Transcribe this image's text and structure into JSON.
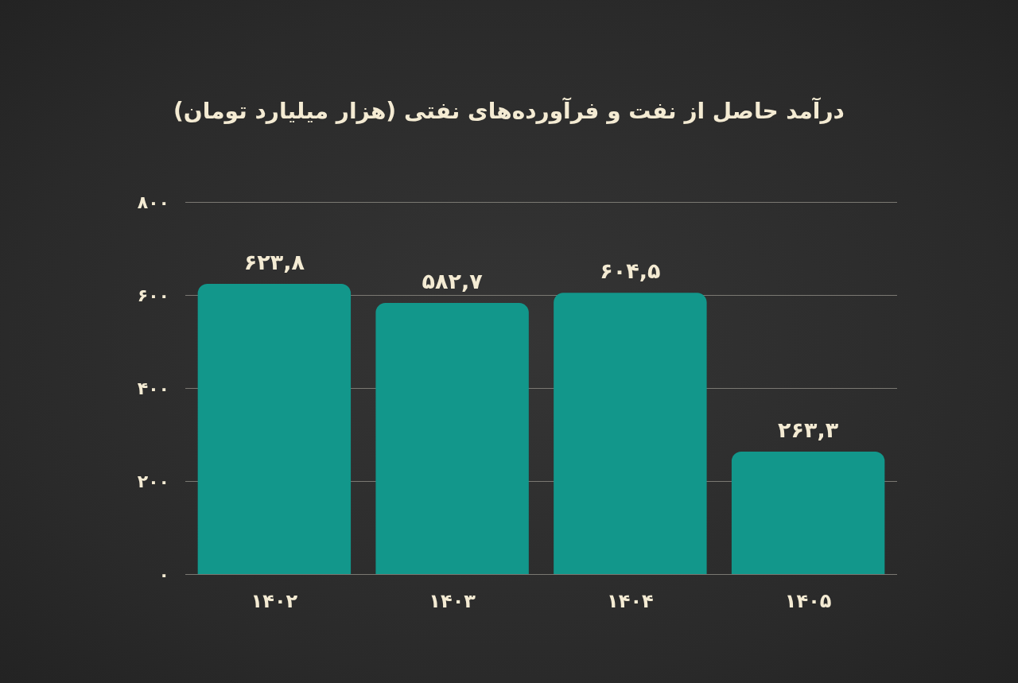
{
  "chart_data": {
    "type": "bar",
    "title": "درآمد حاصل از نفت و فرآورده‌های نفتی (هزار میلیارد تومان)",
    "categories": [
      "۱۴۰۲",
      "۱۴۰۳",
      "۱۴۰۴",
      "۱۴۰۵"
    ],
    "values": [
      623.8,
      582.7,
      604.5,
      263.3
    ],
    "value_labels": [
      "۶۲۳,۸",
      "۵۸۲,۷",
      "۶۰۴,۵",
      "۲۶۳,۳"
    ],
    "color": "#12978b",
    "ylim": [
      0,
      800
    ],
    "yticks": [
      {
        "value": 0,
        "label": "۰"
      },
      {
        "value": 200,
        "label": "۲۰۰"
      },
      {
        "value": 400,
        "label": "۴۰۰"
      },
      {
        "value": 600,
        "label": "۶۰۰"
      },
      {
        "value": 800,
        "label": "۸۰۰"
      }
    ],
    "grid": "y"
  }
}
